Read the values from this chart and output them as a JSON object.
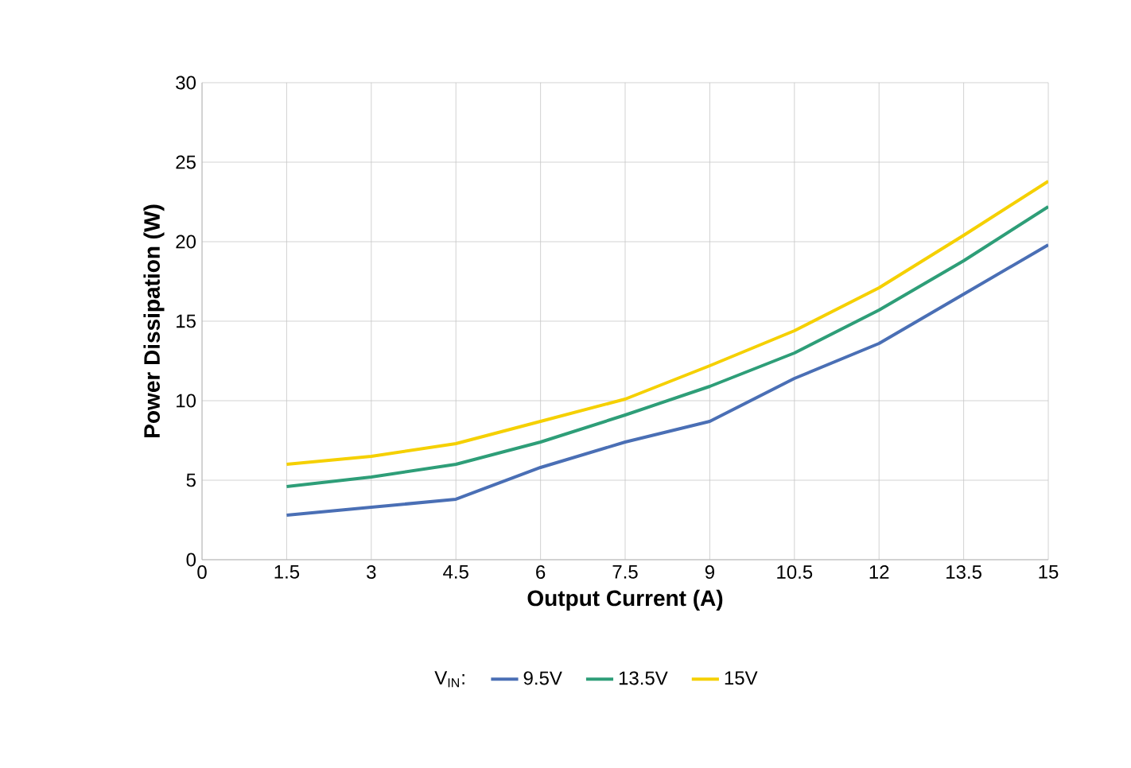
{
  "chart_data": {
    "type": "line",
    "xlabel": "Output Current (A)",
    "ylabel": "Power Dissipation (W)",
    "legend_title": "V$_{IN}$:",
    "x": [
      1.5,
      3,
      4.5,
      6,
      7.5,
      9,
      10.5,
      12,
      13.5,
      15
    ],
    "series": [
      {
        "name": "9.5V",
        "color": "#4a6fb5",
        "values": [
          2.8,
          3.3,
          3.8,
          5.8,
          7.4,
          8.7,
          11.4,
          13.6,
          16.7,
          19.8
        ]
      },
      {
        "name": "13.5V",
        "color": "#2e9e78",
        "values": [
          4.6,
          5.2,
          6.0,
          7.4,
          9.1,
          10.9,
          13.0,
          15.7,
          18.8,
          22.2
        ]
      },
      {
        "name": "15V",
        "color": "#f5d000",
        "values": [
          6.0,
          6.5,
          7.3,
          8.7,
          10.1,
          12.2,
          14.4,
          17.1,
          20.4,
          23.8
        ]
      }
    ],
    "xlim": [
      0,
      15
    ],
    "xticks": [
      0,
      1.5,
      3,
      4.5,
      6,
      7.5,
      9,
      10.5,
      12,
      13.5,
      15
    ],
    "ylim": [
      0,
      30
    ],
    "yticks": [
      0,
      5,
      10,
      15,
      20,
      25,
      30
    ],
    "grid": true,
    "legend": "bottom",
    "marker": "none",
    "line_style": "solid"
  }
}
